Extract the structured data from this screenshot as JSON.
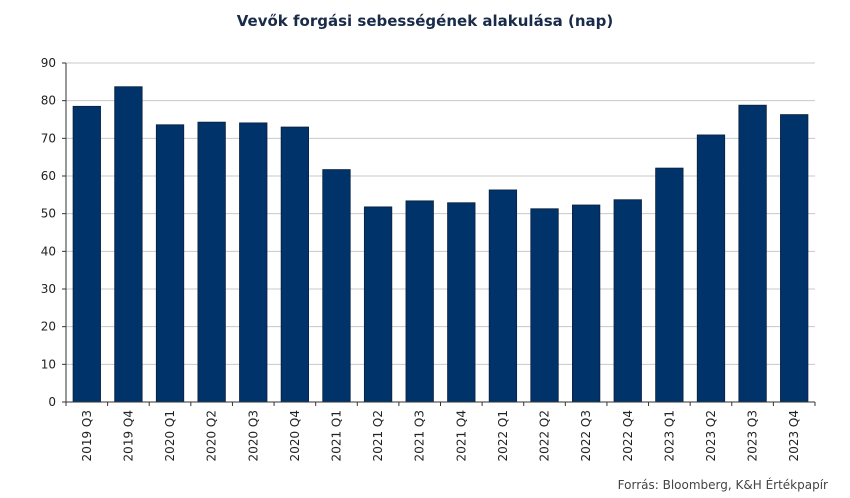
{
  "chart_data": {
    "type": "bar",
    "title": "Vevők forgási sebességének alakulása (nap)",
    "categories": [
      "2019 Q3",
      "2019 Q4",
      "2020 Q1",
      "2020 Q2",
      "2020 Q3",
      "2020 Q4",
      "2021 Q1",
      "2021 Q2",
      "2021 Q3",
      "2021 Q4",
      "2022 Q1",
      "2022 Q2",
      "2022 Q3",
      "2022 Q4",
      "2023 Q1",
      "2023 Q2",
      "2023 Q3",
      "2023 Q4"
    ],
    "values": [
      78.5,
      83.7,
      73.6,
      74.3,
      74.1,
      73.0,
      61.7,
      51.8,
      53.4,
      52.9,
      56.3,
      51.3,
      52.3,
      53.7,
      62.1,
      70.9,
      78.8,
      76.3
    ],
    "ylim": [
      0,
      90
    ],
    "yticks": [
      0,
      10,
      20,
      30,
      40,
      50,
      60,
      70,
      80,
      90
    ],
    "xlabel": "",
    "ylabel": "",
    "grid": true,
    "bar_color": "#00336a",
    "grid_color": "#c8c8c8"
  },
  "source": "Forrás: Bloomberg,  K&H Értékpapír"
}
